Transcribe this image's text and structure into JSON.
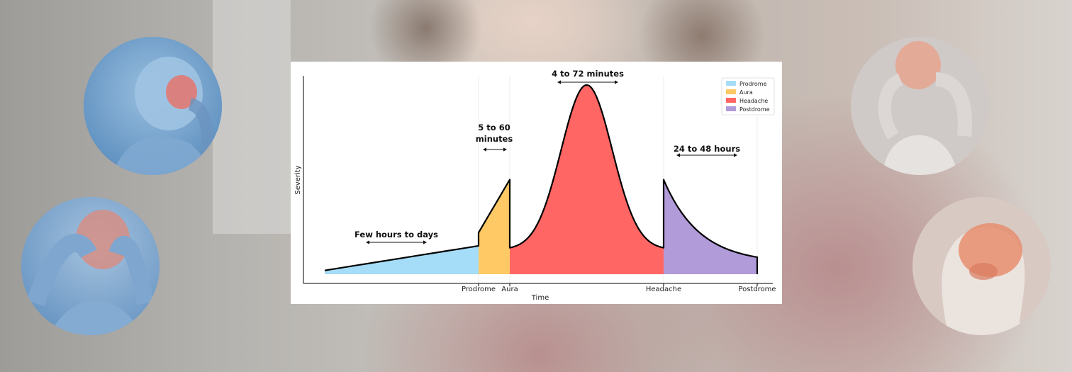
{
  "chart_data": {
    "type": "area",
    "title": "",
    "xlabel": "Time",
    "ylabel": "Severity",
    "x_ticks": [
      "Prodrome",
      "Aura",
      "Headache",
      "Postdrome"
    ],
    "grid": "vertical lines at phase boundaries",
    "legend_position": "top-right",
    "series": [
      {
        "name": "Prodrome",
        "color": "#a5dcf7",
        "start_level": 0.02,
        "end_level": 0.15,
        "shape": "linear rise"
      },
      {
        "name": "Aura",
        "color": "#ffc966",
        "start_level": 0.22,
        "end_level": 0.5,
        "shape": "linear rise"
      },
      {
        "name": "Headache",
        "color": "#ff6664",
        "start_level": 0.14,
        "peak_level": 1.0,
        "end_level": 0.14,
        "shape": "bell curve"
      },
      {
        "name": "Postdrome",
        "color": "#b19bd9",
        "start_level": 0.5,
        "end_level": 0.09,
        "shape": "exponential decay"
      }
    ],
    "annotations": [
      {
        "text": "Few hours to days",
        "phase": "Prodrome"
      },
      {
        "text_lines": [
          "5 to 60",
          "minutes"
        ],
        "phase": "Aura"
      },
      {
        "text": "4 to 72 minutes",
        "phase": "Headache"
      },
      {
        "text": "24 to 48 hours",
        "phase": "Postdrome"
      }
    ]
  },
  "background": {
    "circles": [
      {
        "name": "head-pain-illustration-top-left",
        "tint": "#6c9bc6"
      },
      {
        "name": "head-pain-illustration-bottom-left",
        "tint": "#6f9ac6"
      },
      {
        "name": "head-pain-illustration-top-right",
        "tint": "#cfc9c7"
      },
      {
        "name": "brain-profile-illustration-bottom-right",
        "tint": "#d8c9c2"
      }
    ]
  }
}
